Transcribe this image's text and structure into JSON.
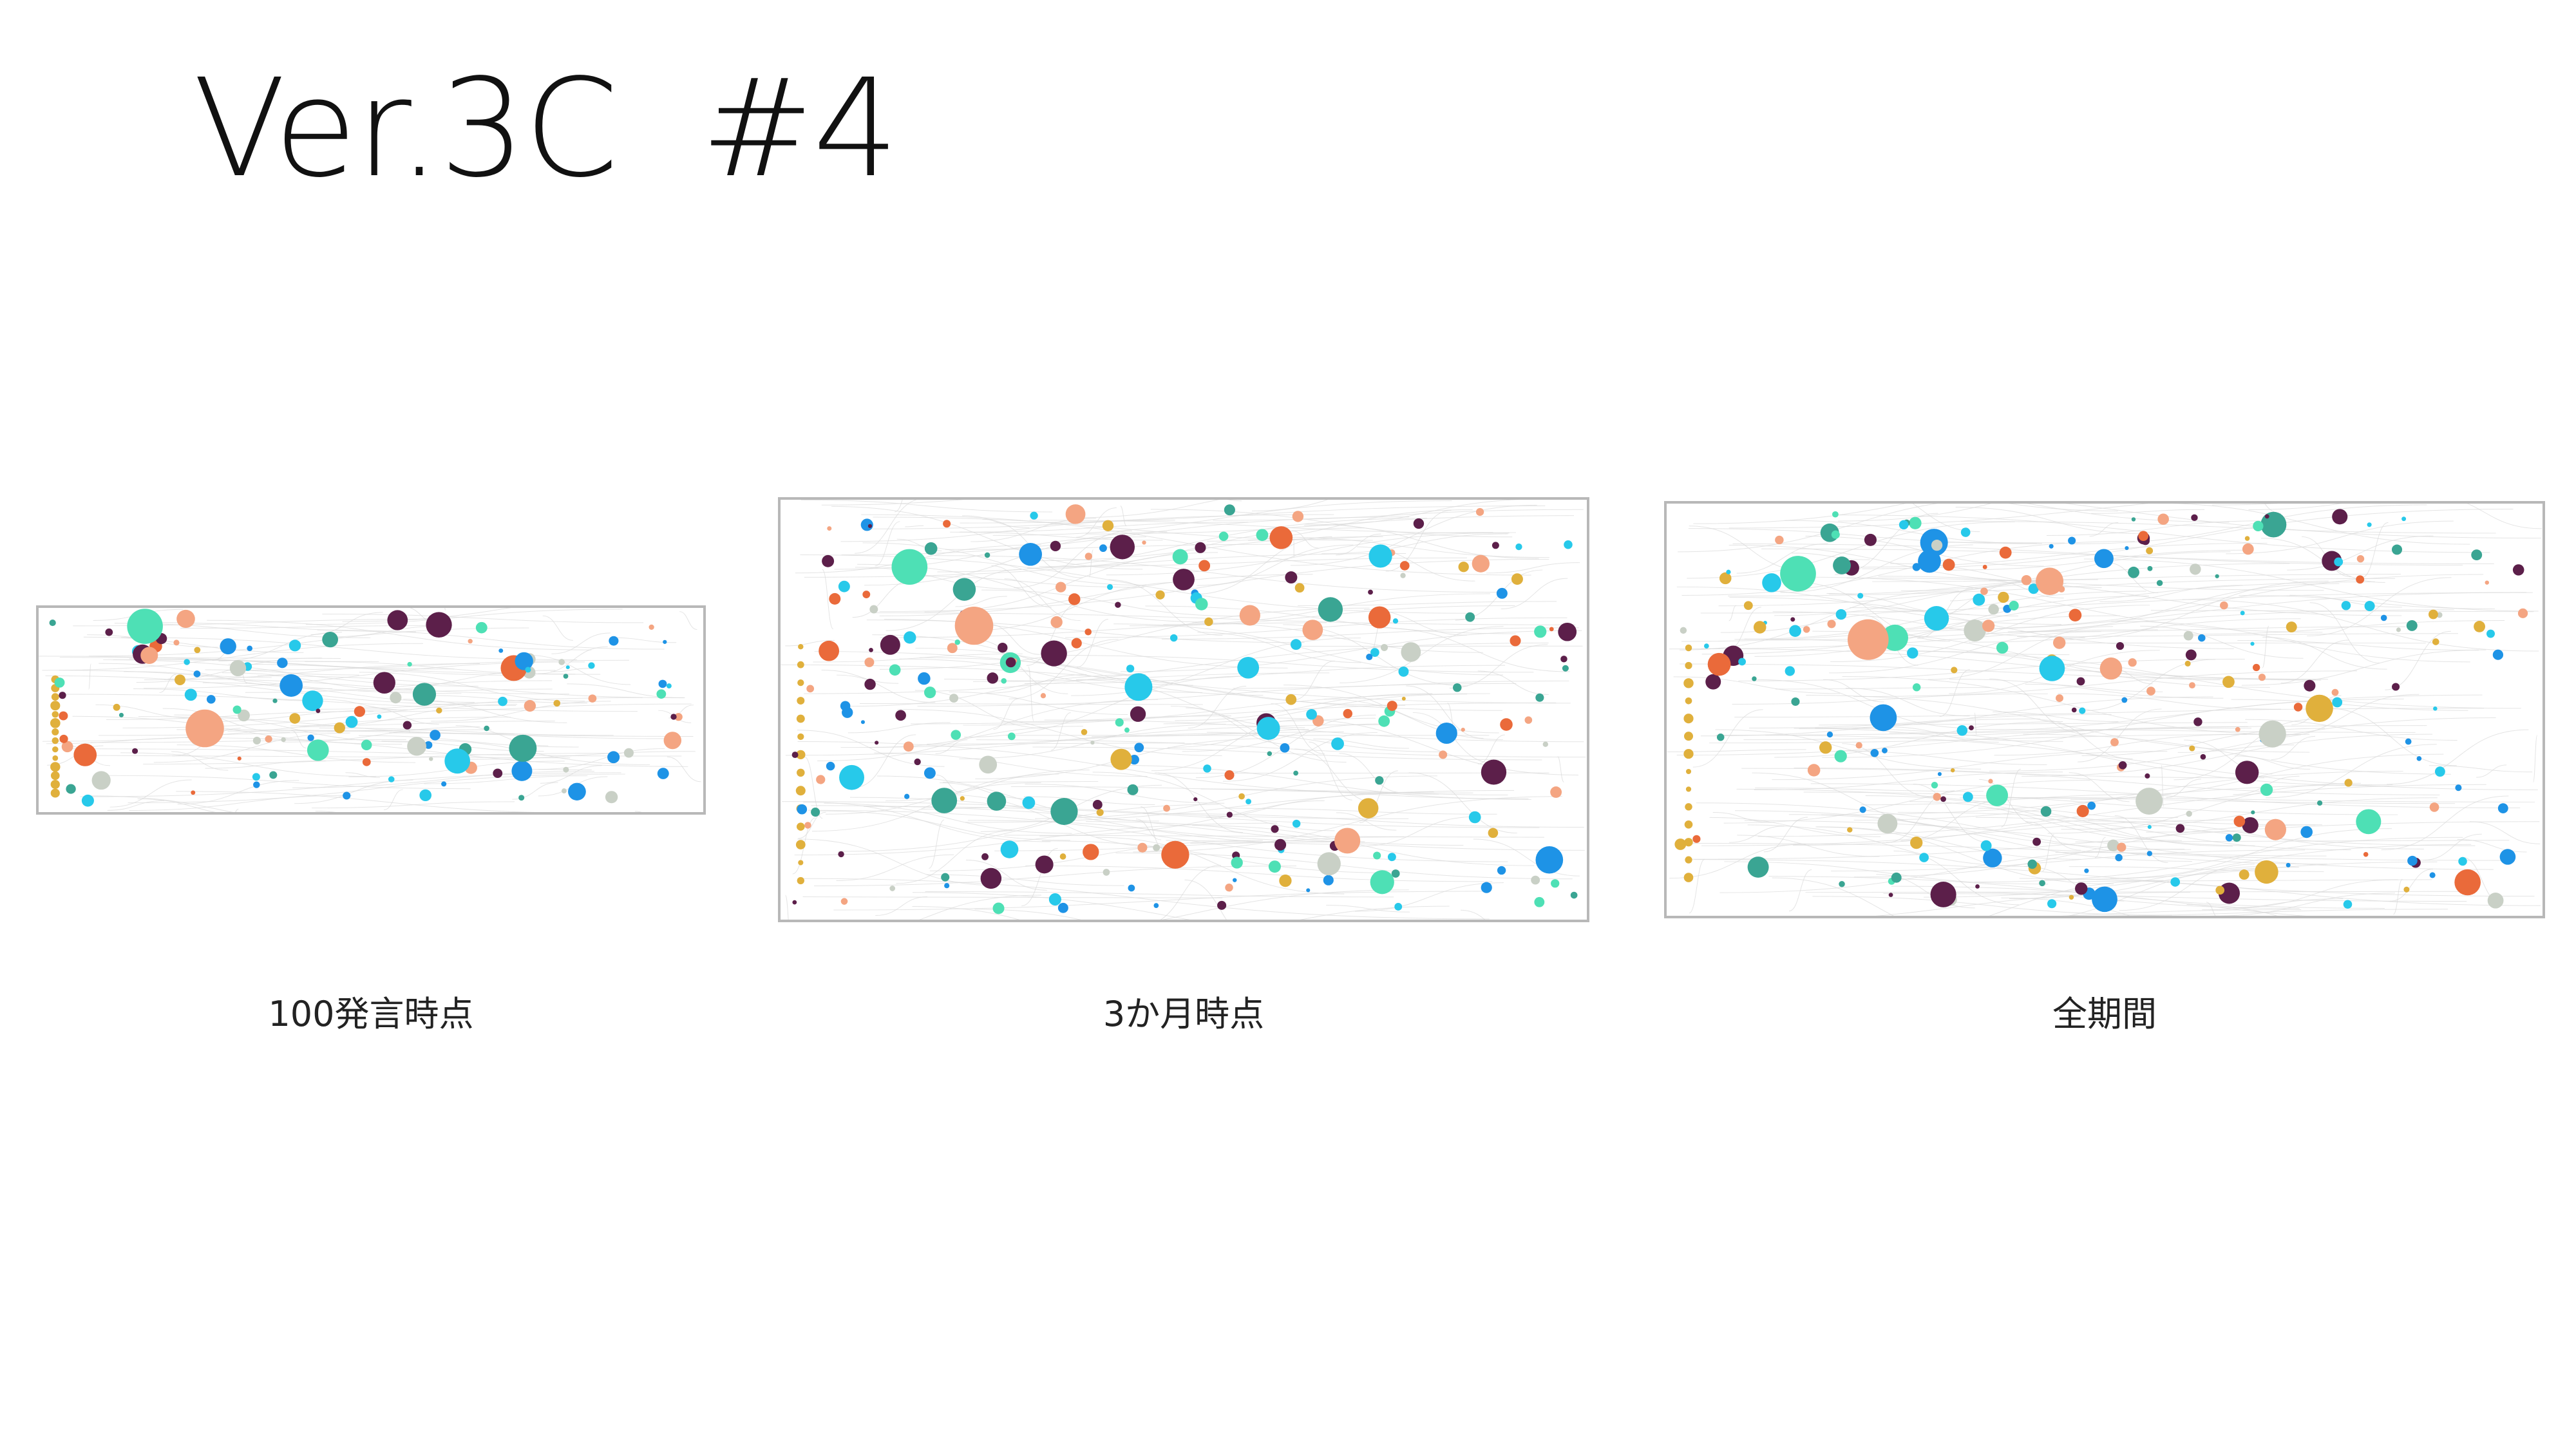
{
  "slide": {
    "title": "Ver.3C  #4"
  },
  "panels": [
    {
      "id": "p1",
      "caption": "100発言時点"
    },
    {
      "id": "p2",
      "caption": "3か月時点"
    },
    {
      "id": "p3",
      "caption": "全期間"
    }
  ],
  "palette": {
    "salmon": "#f4a582",
    "orange": "#ea6a3a",
    "mint": "#4ee0b5",
    "teal": "#3aa593",
    "cyan": "#27c9ea",
    "blue": "#1e93e6",
    "plum": "#5c1f4a",
    "gold": "#e0b03c",
    "grey": "#c9d0c6",
    "edge": "#d9d9d9"
  }
}
